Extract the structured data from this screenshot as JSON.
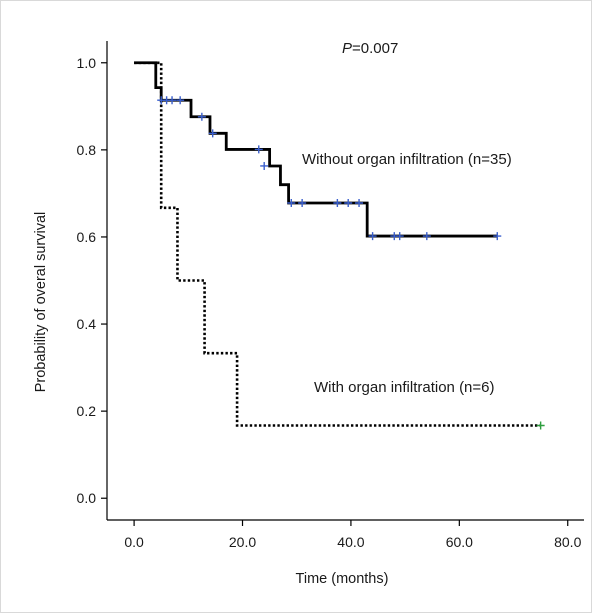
{
  "chart_data": {
    "type": "line",
    "xlabel": "Time (months)",
    "ylabel": "Probability of overal survival",
    "xlim": [
      -5,
      83
    ],
    "ylim": [
      -0.05,
      1.05
    ],
    "x_ticks": [
      0,
      20,
      40,
      60,
      80
    ],
    "x_tick_labels": [
      "0.0",
      "20.0",
      "40.0",
      "60.0",
      "80.0"
    ],
    "y_ticks": [
      0,
      0.2,
      0.4,
      0.6,
      0.8,
      1.0
    ],
    "y_tick_labels": [
      "0.0",
      "0.2",
      "0.4",
      "0.6",
      "0.8",
      "1.0"
    ],
    "grid": false,
    "p_value_prefix": "P",
    "p_value_rest": "=0.007",
    "series": [
      {
        "name": "Without organ infiltration (n=35)",
        "style": "solid",
        "color": "#000000",
        "censor_color": "#3a5fcd",
        "steps": [
          [
            0,
            1.0
          ],
          [
            4,
            0.943
          ],
          [
            5,
            0.914
          ],
          [
            10.5,
            0.876
          ],
          [
            14,
            0.838
          ],
          [
            17,
            0.801
          ],
          [
            25,
            0.763
          ],
          [
            27,
            0.72
          ],
          [
            28.5,
            0.678
          ],
          [
            43,
            0.602
          ],
          [
            67,
            0.602
          ]
        ],
        "censored": [
          [
            5,
            0.914
          ],
          [
            6,
            0.914
          ],
          [
            7,
            0.914
          ],
          [
            8.5,
            0.914
          ],
          [
            12.5,
            0.876
          ],
          [
            14.5,
            0.838
          ],
          [
            23,
            0.801
          ],
          [
            24,
            0.763
          ],
          [
            29,
            0.678
          ],
          [
            31,
            0.678
          ],
          [
            37.5,
            0.678
          ],
          [
            39.5,
            0.678
          ],
          [
            41.5,
            0.678
          ],
          [
            44,
            0.602
          ],
          [
            48,
            0.602
          ],
          [
            49,
            0.602
          ],
          [
            54,
            0.602
          ],
          [
            67,
            0.602
          ]
        ]
      },
      {
        "name": "With organ infiltration (n=6)",
        "style": "dotted",
        "color": "#000000",
        "censor_color": "#2e9e3e",
        "steps": [
          [
            0,
            1.0
          ],
          [
            5,
            0.667
          ],
          [
            8,
            0.5
          ],
          [
            13,
            0.333
          ],
          [
            19,
            0.167
          ],
          [
            75,
            0.167
          ]
        ],
        "censored": [
          [
            75,
            0.167
          ]
        ]
      }
    ]
  }
}
